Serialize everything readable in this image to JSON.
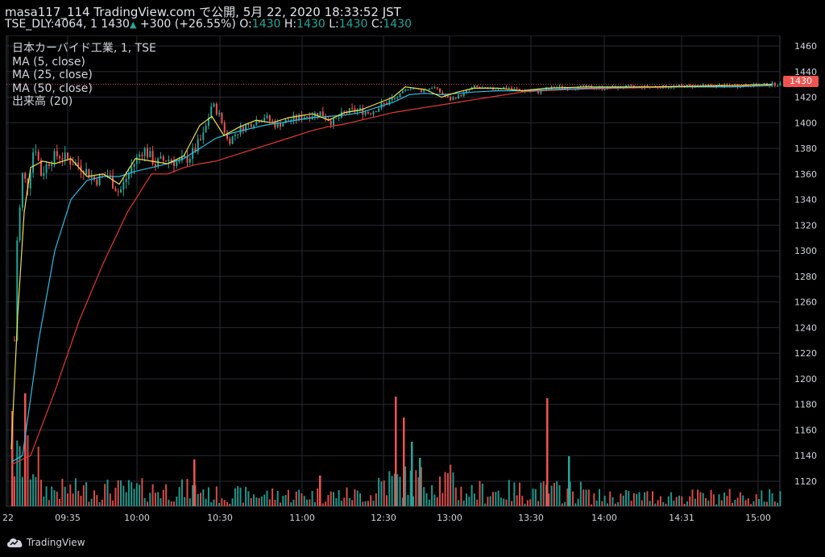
{
  "header": {
    "line1": "masa117_114 TradingView.com で公開, 5月 22, 2020 18:33:52 JST",
    "symbol": "TSE_DLY:4064, 1",
    "price": "1430",
    "change": "+300 (+26.55%)",
    "o_label": "O:",
    "o_val": "1430",
    "h_label": "H:",
    "h_val": "1430",
    "l_label": "L:",
    "l_val": "1430",
    "c_label": "C:",
    "c_val": "1430"
  },
  "legend": {
    "title": "日本カーバイド工業, 1, TSE",
    "ma5": "MA (5, close)",
    "ma25": "MA (25, close)",
    "ma50": "MA (50, close)",
    "volume": "出来高 (20)"
  },
  "footer": {
    "brand": "TradingView"
  },
  "colors": {
    "up": "#26a69a",
    "down": "#ef5350",
    "ma5": "#f0e04f",
    "ma25": "#2ebde5",
    "ma50": "#e53935",
    "grid": "#262a33",
    "text": "#d1d4dc"
  },
  "chart_data": {
    "type": "candlestick",
    "y_ticks": [
      1120,
      1140,
      1160,
      1180,
      1200,
      1220,
      1240,
      1260,
      1280,
      1300,
      1320,
      1340,
      1360,
      1380,
      1400,
      1420,
      1440,
      1460
    ],
    "ylim": [
      1100,
      1468
    ],
    "x_ticks": [
      "22",
      "09:35",
      "10:00",
      "10:30",
      "11:00",
      "12:30",
      "13:00",
      "13:30",
      "14:00",
      "14:31",
      "15:00"
    ],
    "last_price": 1430,
    "price_path": [
      [
        0,
        1230
      ],
      [
        2,
        1300
      ],
      [
        5,
        1320
      ],
      [
        10,
        1360
      ],
      [
        16,
        1350
      ],
      [
        25,
        1385
      ],
      [
        33,
        1360
      ],
      [
        45,
        1372
      ],
      [
        55,
        1375
      ],
      [
        70,
        1370
      ],
      [
        85,
        1365
      ],
      [
        100,
        1355
      ],
      [
        115,
        1360
      ],
      [
        130,
        1345
      ],
      [
        145,
        1365
      ],
      [
        160,
        1380
      ],
      [
        175,
        1368
      ],
      [
        190,
        1372
      ],
      [
        205,
        1368
      ],
      [
        220,
        1375
      ],
      [
        235,
        1390
      ],
      [
        245,
        1415
      ],
      [
        255,
        1405
      ],
      [
        265,
        1385
      ],
      [
        280,
        1395
      ],
      [
        295,
        1400
      ],
      [
        310,
        1405
      ],
      [
        325,
        1398
      ],
      [
        340,
        1402
      ],
      [
        360,
        1405
      ],
      [
        380,
        1408
      ],
      [
        395,
        1400
      ],
      [
        410,
        1408
      ],
      [
        425,
        1410
      ],
      [
        440,
        1408
      ],
      [
        460,
        1415
      ],
      [
        475,
        1420
      ],
      [
        490,
        1428
      ],
      [
        505,
        1425
      ],
      [
        520,
        1428
      ],
      [
        540,
        1418
      ],
      [
        555,
        1422
      ],
      [
        570,
        1428
      ],
      [
        590,
        1426
      ],
      [
        610,
        1428
      ],
      [
        630,
        1425
      ],
      [
        650,
        1424
      ],
      [
        670,
        1428
      ],
      [
        690,
        1427
      ],
      [
        710,
        1428
      ],
      [
        730,
        1427
      ],
      [
        760,
        1428
      ],
      [
        800,
        1428
      ],
      [
        850,
        1429
      ],
      [
        900,
        1429
      ],
      [
        940,
        1430
      ]
    ],
    "ma5": [
      [
        6,
        1145
      ],
      [
        14,
        1250
      ],
      [
        22,
        1330
      ],
      [
        30,
        1365
      ],
      [
        45,
        1370
      ],
      [
        60,
        1368
      ],
      [
        80,
        1372
      ],
      [
        100,
        1358
      ],
      [
        120,
        1360
      ],
      [
        140,
        1352
      ],
      [
        160,
        1372
      ],
      [
        180,
        1370
      ],
      [
        200,
        1368
      ],
      [
        220,
        1374
      ],
      [
        240,
        1398
      ],
      [
        255,
        1405
      ],
      [
        270,
        1390
      ],
      [
        290,
        1397
      ],
      [
        310,
        1402
      ],
      [
        330,
        1400
      ],
      [
        350,
        1404
      ],
      [
        380,
        1407
      ],
      [
        400,
        1402
      ],
      [
        420,
        1408
      ],
      [
        440,
        1410
      ],
      [
        460,
        1415
      ],
      [
        480,
        1420
      ],
      [
        495,
        1428
      ],
      [
        520,
        1426
      ],
      [
        540,
        1420
      ],
      [
        560,
        1424
      ],
      [
        580,
        1427
      ],
      [
        610,
        1427
      ],
      [
        640,
        1425
      ],
      [
        670,
        1427
      ],
      [
        720,
        1428
      ],
      [
        800,
        1428
      ],
      [
        900,
        1429
      ],
      [
        950,
        1430
      ]
    ],
    "ma25": [
      [
        6,
        1135
      ],
      [
        20,
        1140
      ],
      [
        40,
        1230
      ],
      [
        60,
        1300
      ],
      [
        80,
        1340
      ],
      [
        100,
        1355
      ],
      [
        120,
        1358
      ],
      [
        140,
        1358
      ],
      [
        160,
        1362
      ],
      [
        180,
        1365
      ],
      [
        200,
        1368
      ],
      [
        220,
        1372
      ],
      [
        240,
        1380
      ],
      [
        260,
        1388
      ],
      [
        280,
        1392
      ],
      [
        300,
        1395
      ],
      [
        320,
        1398
      ],
      [
        340,
        1400
      ],
      [
        360,
        1402
      ],
      [
        380,
        1404
      ],
      [
        400,
        1405
      ],
      [
        420,
        1406
      ],
      [
        440,
        1408
      ],
      [
        460,
        1412
      ],
      [
        480,
        1416
      ],
      [
        500,
        1422
      ],
      [
        520,
        1423
      ],
      [
        540,
        1422
      ],
      [
        560,
        1423
      ],
      [
        580,
        1424
      ],
      [
        610,
        1425
      ],
      [
        640,
        1425
      ],
      [
        680,
        1426
      ],
      [
        720,
        1427
      ],
      [
        800,
        1428
      ],
      [
        900,
        1428
      ],
      [
        950,
        1429
      ]
    ],
    "ma50": [
      [
        6,
        1133
      ],
      [
        30,
        1140
      ],
      [
        60,
        1190
      ],
      [
        90,
        1245
      ],
      [
        120,
        1290
      ],
      [
        150,
        1330
      ],
      [
        180,
        1360
      ],
      [
        200,
        1360
      ],
      [
        220,
        1365
      ],
      [
        240,
        1368
      ],
      [
        260,
        1370
      ],
      [
        280,
        1374
      ],
      [
        300,
        1378
      ],
      [
        320,
        1382
      ],
      [
        340,
        1386
      ],
      [
        360,
        1390
      ],
      [
        380,
        1394
      ],
      [
        400,
        1397
      ],
      [
        420,
        1399
      ],
      [
        440,
        1402
      ],
      [
        460,
        1405
      ],
      [
        480,
        1408
      ],
      [
        500,
        1410
      ],
      [
        520,
        1412
      ],
      [
        540,
        1414
      ],
      [
        560,
        1416
      ],
      [
        580,
        1418
      ],
      [
        600,
        1420
      ],
      [
        620,
        1422
      ],
      [
        640,
        1424
      ],
      [
        660,
        1425
      ],
      [
        700,
        1426
      ],
      [
        760,
        1427
      ],
      [
        840,
        1428
      ],
      [
        900,
        1428
      ],
      [
        950,
        1429
      ]
    ],
    "volume_series_name": "出来高 (20)"
  }
}
